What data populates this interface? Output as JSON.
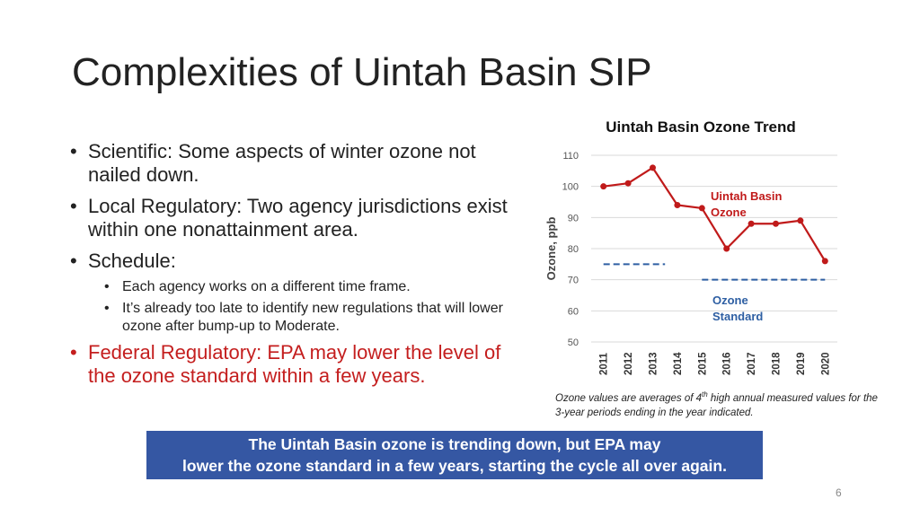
{
  "slide": {
    "title": "Complexities of Uintah Basin SIP",
    "bullets": [
      {
        "text": "Scientific:  Some aspects of  winter ozone not nailed down."
      },
      {
        "text": "Local Regulatory:  Two agency jurisdictions exist within one nonattainment area."
      },
      {
        "text": "Schedule:",
        "sub": [
          "Each agency works on a different time frame.",
          "It’s already too late to identify new regulations that will lower ozone after bump-up to Moderate."
        ]
      },
      {
        "text": "Federal Regulatory:  EPA may lower the level of the ozone standard within a few years."
      }
    ],
    "footnote": {
      "before": "Ozone values are averages of 4",
      "sup": "th",
      "after": " high annual measured values for the 3-year periods ending in the year indicated."
    },
    "banner_line1": "The Uintah Basin ozone is trending down, but EPA may",
    "banner_line2": "lower the ozone standard in a few years, starting the cycle all over again.",
    "page_number": "6"
  },
  "chart_data": {
    "type": "line",
    "title": "Uintah Basin Ozone Trend",
    "ylabel": "Ozone, ppb",
    "xlabel": "",
    "ylim": [
      50,
      110
    ],
    "yticks": [
      50,
      60,
      70,
      80,
      90,
      100,
      110
    ],
    "grid": true,
    "categories": [
      "2011",
      "2012",
      "2013",
      "2014",
      "2015",
      "2016",
      "2017",
      "2018",
      "2019",
      "2020"
    ],
    "series": [
      {
        "name": "Uintah Basin Ozone",
        "label_lines": [
          "Uintah Basin",
          "Ozone"
        ],
        "color": "#c01a1a",
        "style": "solid",
        "values": [
          100,
          101,
          106,
          94,
          93,
          80,
          88,
          88,
          89,
          76
        ]
      },
      {
        "name": "Ozone Standard",
        "label_lines": [
          "Ozone",
          "Standard"
        ],
        "color": "#2e5fa3",
        "style": "dashed",
        "segments": [
          {
            "x": [
              "2011",
              "2013.5"
            ],
            "y": 75
          },
          {
            "x": [
              "2015",
              "2020"
            ],
            "y": 70
          }
        ]
      }
    ]
  }
}
